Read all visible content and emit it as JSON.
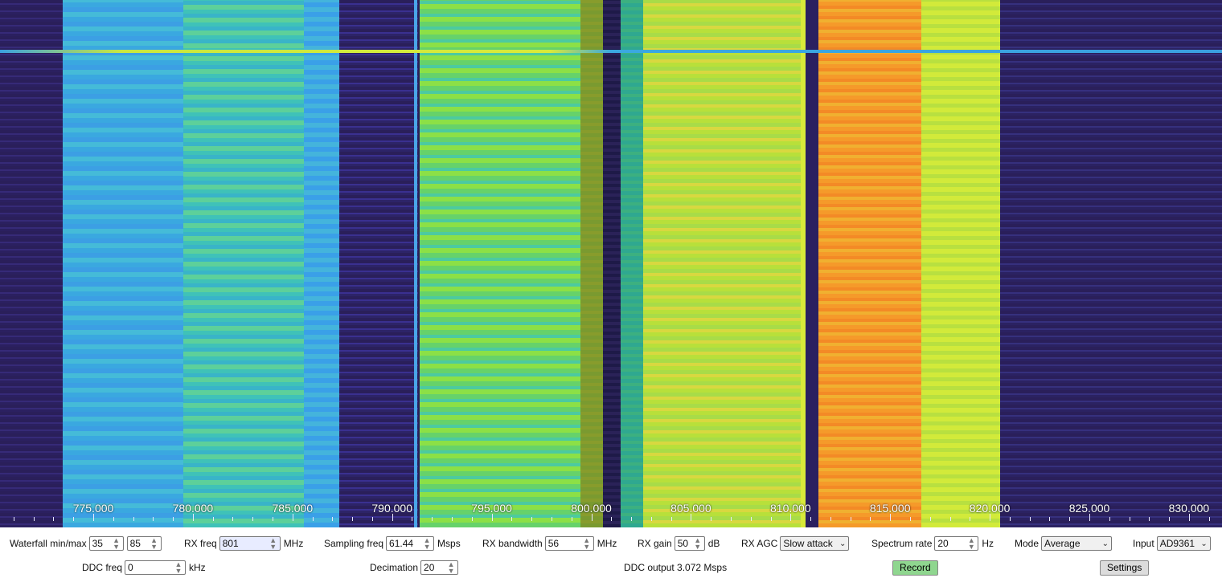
{
  "axis_labels": [
    "775.000",
    "780.000",
    "785.000",
    "790.000",
    "795.000",
    "800.000",
    "805.000",
    "810.000",
    "815.000",
    "820.000",
    "825.000",
    "830.000"
  ],
  "controls": {
    "waterfall_label": "Waterfall min/max",
    "waterfall_min": "35",
    "waterfall_max": "85",
    "rx_freq_label": "RX freq",
    "rx_freq_value": "801",
    "rx_freq_unit": "MHz",
    "sampling_label": "Sampling freq",
    "sampling_value": "61.44",
    "sampling_unit": "Msps",
    "bandwidth_label": "RX bandwidth",
    "bandwidth_value": "56",
    "bandwidth_unit": "MHz",
    "gain_label": "RX gain",
    "gain_value": "50",
    "gain_unit": "dB",
    "agc_label": "RX AGC",
    "agc_value": "Slow attack",
    "spectrum_rate_label": "Spectrum rate",
    "spectrum_rate_value": "20",
    "spectrum_rate_unit": "Hz",
    "mode_label": "Mode",
    "mode_value": "Average",
    "input_label": "Input",
    "input_value": "AD9361",
    "ddc_freq_label": "DDC freq",
    "ddc_freq_value": "0",
    "ddc_freq_unit": "kHz",
    "decimation_label": "Decimation",
    "decimation_value": "20",
    "ddc_output_text": "DDC output 3.072 Msps",
    "record_label": "Record",
    "settings_label": "Settings"
  },
  "colors": {
    "background_noise": "#2a1f5a",
    "band_cyan": "#3fb8d8",
    "band_green": "#8fe04a",
    "band_yellow": "#d8ea3a",
    "band_orange": "#f59a2a",
    "record_button": "#8fd68f"
  }
}
